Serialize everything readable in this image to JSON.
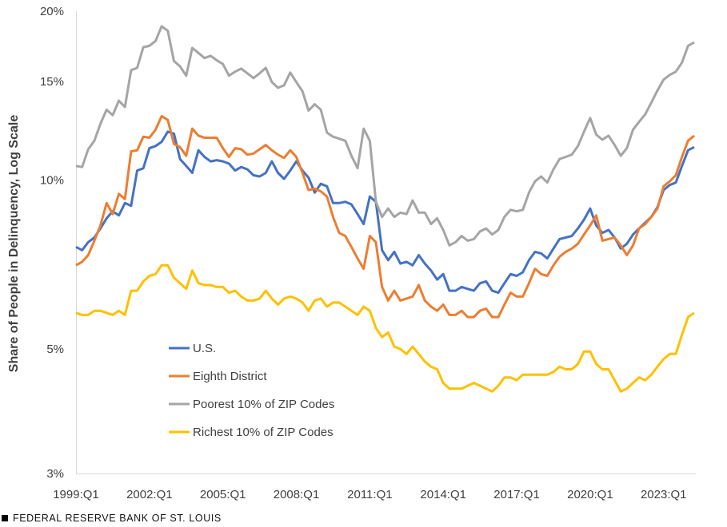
{
  "chart_data": {
    "type": "line",
    "title": "",
    "ylabel": "Share of People in Delinquency, Log Scale",
    "xlabel": "",
    "yscale": "log",
    "ylim": [
      3,
      20
    ],
    "y_ticks": [
      3,
      5,
      10,
      15,
      20
    ],
    "y_tick_labels": [
      "3%",
      "5%",
      "10%",
      "15%",
      "20%"
    ],
    "x_start": "1999:Q1",
    "x_end": "2024:Q2",
    "x_tick_labels": [
      "1999:Q1",
      "2002:Q1",
      "2005:Q1",
      "2008:Q1",
      "2011:Q1",
      "2014:Q1",
      "2017:Q1",
      "2020:Q1",
      "2023:Q1"
    ],
    "series": [
      {
        "name": "U.S.",
        "color": "#4472C4",
        "values": [
          7.6,
          7.5,
          7.75,
          7.9,
          8.2,
          8.55,
          8.8,
          8.65,
          9.1,
          9.0,
          10.4,
          10.5,
          11.4,
          11.5,
          11.7,
          12.2,
          12.1,
          10.9,
          10.6,
          10.3,
          11.3,
          11.0,
          10.8,
          10.85,
          10.8,
          10.7,
          10.4,
          10.55,
          10.45,
          10.2,
          10.15,
          10.3,
          10.8,
          10.3,
          10.05,
          10.4,
          10.8,
          10.4,
          10.1,
          9.5,
          9.85,
          9.75,
          9.1,
          9.1,
          9.15,
          9.05,
          8.7,
          8.35,
          9.35,
          9.15,
          7.5,
          7.2,
          7.45,
          7.1,
          7.15,
          7.05,
          7.35,
          7.1,
          6.9,
          6.65,
          6.8,
          6.35,
          6.35,
          6.45,
          6.4,
          6.35,
          6.55,
          6.6,
          6.35,
          6.3,
          6.55,
          6.8,
          6.75,
          6.85,
          7.2,
          7.45,
          7.4,
          7.25,
          7.55,
          7.85,
          7.9,
          7.95,
          8.2,
          8.5,
          8.9,
          8.3,
          8.05,
          8.15,
          7.9,
          7.55,
          7.7,
          8.0,
          8.2,
          8.4,
          8.6,
          8.95,
          9.6,
          9.8,
          9.9,
          10.6,
          11.3,
          11.45
        ]
      },
      {
        "name": "Eighth District",
        "color": "#ED7D31",
        "values": [
          7.05,
          7.15,
          7.35,
          7.8,
          8.3,
          9.1,
          8.7,
          9.45,
          9.25,
          11.25,
          11.3,
          11.95,
          11.9,
          12.3,
          13.0,
          12.8,
          11.6,
          11.45,
          11.05,
          12.35,
          12.0,
          11.9,
          11.9,
          11.9,
          11.4,
          11.0,
          11.4,
          11.35,
          11.1,
          11.15,
          11.35,
          11.55,
          11.3,
          11.1,
          10.95,
          11.3,
          11.0,
          10.3,
          9.6,
          9.65,
          9.55,
          9.35,
          8.6,
          8.05,
          7.95,
          7.6,
          7.25,
          6.95,
          7.95,
          7.75,
          6.45,
          6.1,
          6.35,
          6.1,
          6.15,
          6.2,
          6.5,
          6.1,
          5.95,
          5.85,
          6.0,
          5.75,
          5.75,
          5.85,
          5.7,
          5.7,
          5.85,
          5.9,
          5.7,
          5.7,
          6.0,
          6.3,
          6.2,
          6.2,
          6.55,
          6.95,
          6.8,
          6.75,
          7.05,
          7.3,
          7.45,
          7.55,
          7.7,
          8.0,
          8.3,
          8.65,
          7.8,
          7.85,
          7.9,
          7.65,
          7.35,
          7.65,
          8.2,
          8.35,
          8.6,
          8.9,
          9.75,
          9.95,
          10.2,
          11.0,
          11.75,
          12.0
        ]
      },
      {
        "name": "Poorest 10% of ZIP Codes",
        "color": "#A5A5A5",
        "values": [
          10.6,
          10.55,
          11.35,
          11.75,
          12.6,
          13.35,
          13.05,
          13.85,
          13.5,
          15.7,
          15.85,
          17.25,
          17.35,
          17.7,
          18.8,
          18.45,
          16.3,
          15.95,
          15.35,
          17.2,
          16.85,
          16.5,
          16.65,
          16.35,
          16.1,
          15.35,
          15.6,
          15.8,
          15.5,
          15.2,
          15.5,
          15.85,
          14.95,
          14.6,
          14.75,
          15.55,
          14.95,
          14.4,
          13.3,
          13.65,
          13.35,
          12.15,
          11.95,
          11.85,
          11.75,
          11.05,
          10.5,
          12.35,
          11.75,
          9.15,
          8.6,
          8.9,
          8.6,
          8.75,
          8.7,
          9.2,
          8.75,
          8.75,
          8.35,
          8.55,
          8.15,
          7.65,
          7.75,
          7.95,
          7.8,
          7.85,
          8.1,
          8.2,
          8.0,
          8.15,
          8.6,
          8.85,
          8.8,
          8.85,
          9.5,
          9.95,
          10.15,
          9.9,
          10.45,
          10.9,
          11.0,
          11.1,
          11.5,
          12.2,
          12.9,
          12.05,
          11.8,
          12.0,
          11.55,
          11.05,
          11.4,
          12.3,
          12.7,
          13.1,
          13.75,
          14.45,
          15.1,
          15.4,
          15.6,
          16.2,
          17.35,
          17.6
        ]
      },
      {
        "name": "Richest 10% of ZIP Codes",
        "color": "#FFC000",
        "values": [
          5.8,
          5.75,
          5.75,
          5.85,
          5.85,
          5.8,
          5.75,
          5.85,
          5.75,
          6.35,
          6.35,
          6.6,
          6.75,
          6.8,
          7.05,
          7.05,
          6.7,
          6.55,
          6.4,
          6.9,
          6.55,
          6.5,
          6.5,
          6.45,
          6.45,
          6.3,
          6.35,
          6.2,
          6.1,
          6.1,
          6.15,
          6.35,
          6.15,
          6.0,
          6.15,
          6.2,
          6.15,
          6.05,
          5.85,
          6.1,
          6.15,
          5.95,
          6.05,
          6.05,
          5.95,
          5.85,
          5.75,
          5.95,
          5.85,
          5.45,
          5.25,
          5.35,
          5.05,
          5.0,
          4.9,
          5.05,
          4.9,
          4.75,
          4.65,
          4.6,
          4.35,
          4.25,
          4.25,
          4.25,
          4.3,
          4.35,
          4.3,
          4.25,
          4.2,
          4.3,
          4.45,
          4.45,
          4.4,
          4.5,
          4.5,
          4.5,
          4.5,
          4.5,
          4.55,
          4.65,
          4.6,
          4.6,
          4.7,
          4.95,
          4.95,
          4.7,
          4.6,
          4.6,
          4.4,
          4.2,
          4.25,
          4.35,
          4.45,
          4.4,
          4.5,
          4.65,
          4.8,
          4.9,
          4.9,
          5.3,
          5.7,
          5.8
        ]
      }
    ],
    "legend": {
      "placement": "center-left",
      "entries": [
        "U.S.",
        "Eighth District",
        "Poorest 10% of ZIP Codes",
        "Richest 10% of ZIP Codes"
      ]
    }
  },
  "source": {
    "text": "FEDERAL RESERVE BANK OF ST. LOUIS"
  },
  "colors": {
    "axis": "#D9D9D9",
    "text": "#404040"
  }
}
